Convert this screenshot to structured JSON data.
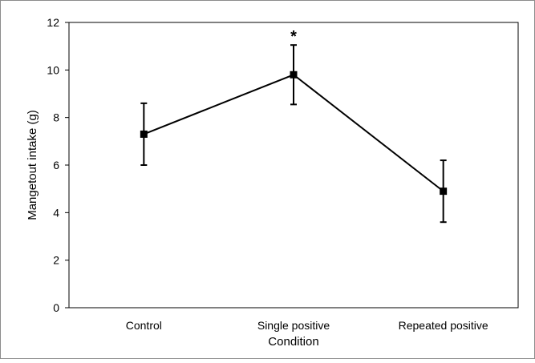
{
  "chart_data": {
    "type": "line",
    "title": "",
    "xlabel": "Condition",
    "ylabel": "Mangetout intake (g)",
    "categories": [
      "Control",
      "Single positive",
      "Repeated positive"
    ],
    "series": [
      {
        "values": [
          7.3,
          9.8,
          4.9
        ],
        "error": [
          1.3,
          1.25,
          1.3
        ]
      }
    ],
    "ylim": [
      0,
      12
    ],
    "yticks": [
      "0",
      "2",
      "4",
      "6",
      "8",
      "10",
      "12"
    ],
    "annotations": [
      {
        "category": "Single positive",
        "text": "*"
      }
    ],
    "grid": false,
    "legend": "none",
    "colors": {
      "line": "#000000",
      "marker": "#000000",
      "axis": "#000000"
    }
  }
}
